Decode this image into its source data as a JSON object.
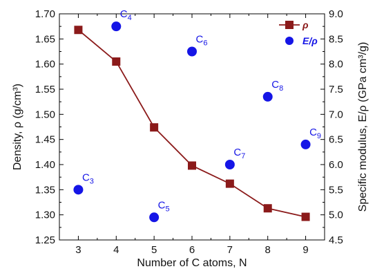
{
  "chart_data": {
    "type": "line+scatter",
    "x": [
      3,
      4,
      5,
      6,
      7,
      8,
      9
    ],
    "xlabel": "Number of C atoms, N",
    "xlim": [
      2.5,
      9.5
    ],
    "xticks": [
      "3",
      "4",
      "5",
      "6",
      "7",
      "8",
      "9"
    ],
    "ylabel_left": "Density, ρ (g/cm³)",
    "ylim_left": [
      1.25,
      1.7
    ],
    "yticks_left": [
      "1.25",
      "1.30",
      "1.35",
      "1.40",
      "1.45",
      "1.50",
      "1.55",
      "1.60",
      "1.65",
      "1.70"
    ],
    "ylabel_right": "Specific modulus, E/ρ (GPa cm³/g)",
    "ylim_right": [
      4.5,
      9.0
    ],
    "yticks_right": [
      "4.5",
      "5.0",
      "5.5",
      "6.0",
      "6.5",
      "7.0",
      "7.5",
      "8.0",
      "8.5",
      "9.0"
    ],
    "legend_position": "top-right",
    "grid": false,
    "series": [
      {
        "name": "ρ",
        "axis": "left",
        "marker": "square",
        "line": true,
        "color": "#8b1a1a",
        "x": [
          3,
          4,
          5,
          6,
          7,
          8,
          9
        ],
        "values": [
          1.668,
          1.605,
          1.474,
          1.398,
          1.362,
          1.313,
          1.296
        ]
      },
      {
        "name": "E/ρ",
        "axis": "right",
        "marker": "circle",
        "line": false,
        "color": "#1515e6",
        "x": [
          3,
          4,
          5,
          6,
          7,
          8,
          9
        ],
        "values": [
          5.5,
          8.75,
          4.95,
          8.25,
          6.0,
          7.35,
          6.4
        ],
        "point_labels": [
          {
            "base": "C",
            "sub": "3"
          },
          {
            "base": "C",
            "sub": "4"
          },
          {
            "base": "C",
            "sub": "5"
          },
          {
            "base": "C",
            "sub": "6"
          },
          {
            "base": "C",
            "sub": "7"
          },
          {
            "base": "C",
            "sub": "8"
          },
          {
            "base": "C",
            "sub": "9"
          }
        ]
      }
    ]
  }
}
